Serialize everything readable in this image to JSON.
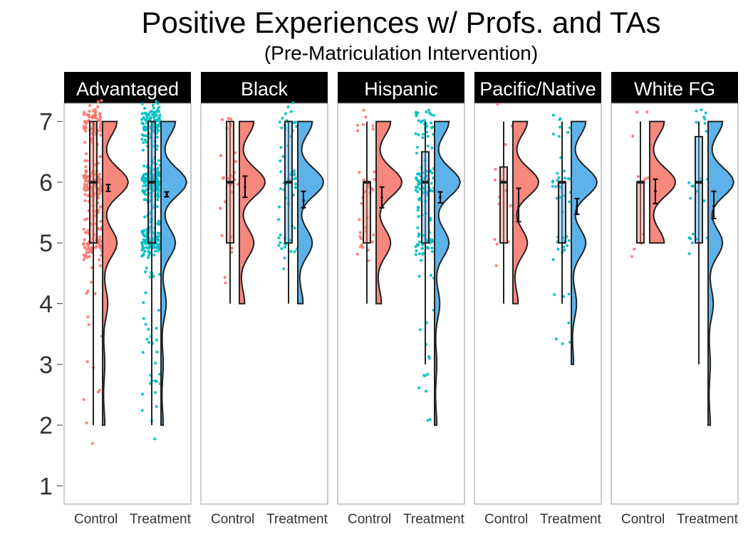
{
  "chart_data": {
    "type": "raincloud",
    "title": "Positive Experiences w/ Profs. and TAs",
    "subtitle": "(Pre-Matriculation Intervention)",
    "xlabel": "",
    "ylabel": "",
    "ylim": [
      0.7,
      7.3
    ],
    "y_ticks": [
      1,
      2,
      3,
      4,
      5,
      6,
      7
    ],
    "categories": [
      "Control",
      "Treatment"
    ],
    "colors": {
      "Control_points": "#F8766D",
      "Treatment_points": "#00BFC4",
      "Control_fill": "#F8877D",
      "Treatment_fill": "#5DB2EA",
      "outline": "#222222",
      "strip": "#000000"
    },
    "panels": [
      {
        "group": "Advantaged",
        "Control": {
          "min": 2,
          "q1": 5,
          "median": 6,
          "q3": 7,
          "max": 7,
          "mean": 5.9,
          "ci": [
            5.85,
            5.96
          ],
          "density_range": [
            2,
            7
          ],
          "n_approx": 250
        },
        "Treatment": {
          "min": 2,
          "q1": 5,
          "median": 6,
          "q3": 7,
          "max": 7,
          "mean": 5.8,
          "ci": [
            5.76,
            5.84
          ],
          "density_range": [
            2,
            7
          ],
          "n_approx": 380
        }
      },
      {
        "group": "Black",
        "Control": {
          "min": 4,
          "q1": 5,
          "median": 6,
          "q3": 7,
          "max": 7,
          "mean": 5.92,
          "ci": [
            5.75,
            6.1
          ],
          "density_range": [
            4,
            7
          ],
          "n_approx": 30
        },
        "Treatment": {
          "min": 4,
          "q1": 5,
          "median": 6,
          "q3": 7,
          "max": 7,
          "mean": 5.7,
          "ci": [
            5.58,
            5.85
          ],
          "density_range": [
            4,
            7
          ],
          "n_approx": 60
        }
      },
      {
        "group": "Hispanic",
        "Control": {
          "min": 4,
          "q1": 5,
          "median": 6,
          "q3": 6,
          "max": 7,
          "mean": 5.75,
          "ci": [
            5.58,
            5.92
          ],
          "density_range": [
            4,
            7
          ],
          "n_approx": 35
        },
        "Treatment": {
          "min": 3,
          "q1": 5,
          "median": 6,
          "q3": 6.5,
          "max": 7,
          "mean": 5.75,
          "ci": [
            5.66,
            5.84
          ],
          "density_range": [
            2,
            7
          ],
          "n_approx": 140
        }
      },
      {
        "group": "Pacific/Native",
        "Control": {
          "min": 4,
          "q1": 5,
          "median": 6,
          "q3": 6.25,
          "max": 7,
          "mean": 5.6,
          "ci": [
            5.35,
            5.9
          ],
          "density_range": [
            4,
            7
          ],
          "n_approx": 14
        },
        "Treatment": {
          "min": 4,
          "q1": 5,
          "median": 6,
          "q3": 6,
          "max": 7,
          "mean": 5.6,
          "ci": [
            5.47,
            5.73
          ],
          "density_range": [
            3,
            7
          ],
          "n_approx": 50
        }
      },
      {
        "group": "White FG",
        "Control": {
          "min": 5,
          "q1": 5,
          "median": 6,
          "q3": 6,
          "max": 7,
          "mean": 5.85,
          "ci": [
            5.65,
            6.05
          ],
          "density_range": [
            5,
            7
          ],
          "n_approx": 12
        },
        "Treatment": {
          "min": 3,
          "q1": 5,
          "median": 6,
          "q3": 6.75,
          "max": 7,
          "mean": 5.6,
          "ci": [
            5.4,
            5.85
          ],
          "density_range": [
            2,
            7
          ],
          "n_approx": 25
        }
      }
    ]
  }
}
